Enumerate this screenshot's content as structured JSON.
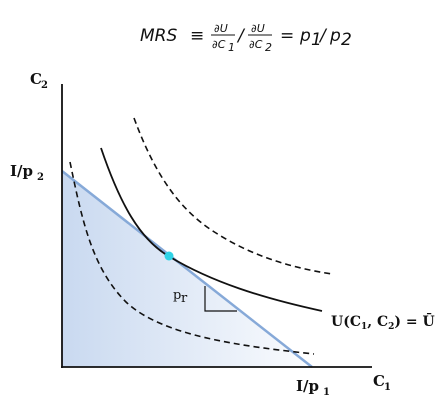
{
  "formula": {
    "lhs": "MRS",
    "equiv": "≡",
    "num1": "∂U",
    "den1": "∂C",
    "den1_sub": "1",
    "slash": "/",
    "num2": "∂U",
    "den2": "∂C",
    "den2_sub": "2",
    "equals": "=",
    "rhs": "p",
    "rhs_sub1": "1",
    "rhs_slash": "/",
    "rhs_p2": "p",
    "rhs_sub2": "2"
  },
  "axes": {
    "y_label": "C",
    "y_sub": "2",
    "x_label": "C",
    "x_sub": "1",
    "y_intercept_label": "I/p",
    "y_intercept_sub": "2",
    "x_intercept_label": "I/p",
    "x_intercept_sub": "1"
  },
  "curve_label": {
    "prefix": "U(C",
    "sub1": "1",
    "mid": ", C",
    "sub2": "2",
    "suffix": ") = Ū"
  },
  "slope_label": {
    "text": "p",
    "sub": "r"
  },
  "colors": {
    "budget_line": "#86a9d8",
    "budget_fill": "#c9d9f0",
    "tangency_point": "#2fd3e6",
    "curve": "#111111",
    "axes": "#111111"
  }
}
